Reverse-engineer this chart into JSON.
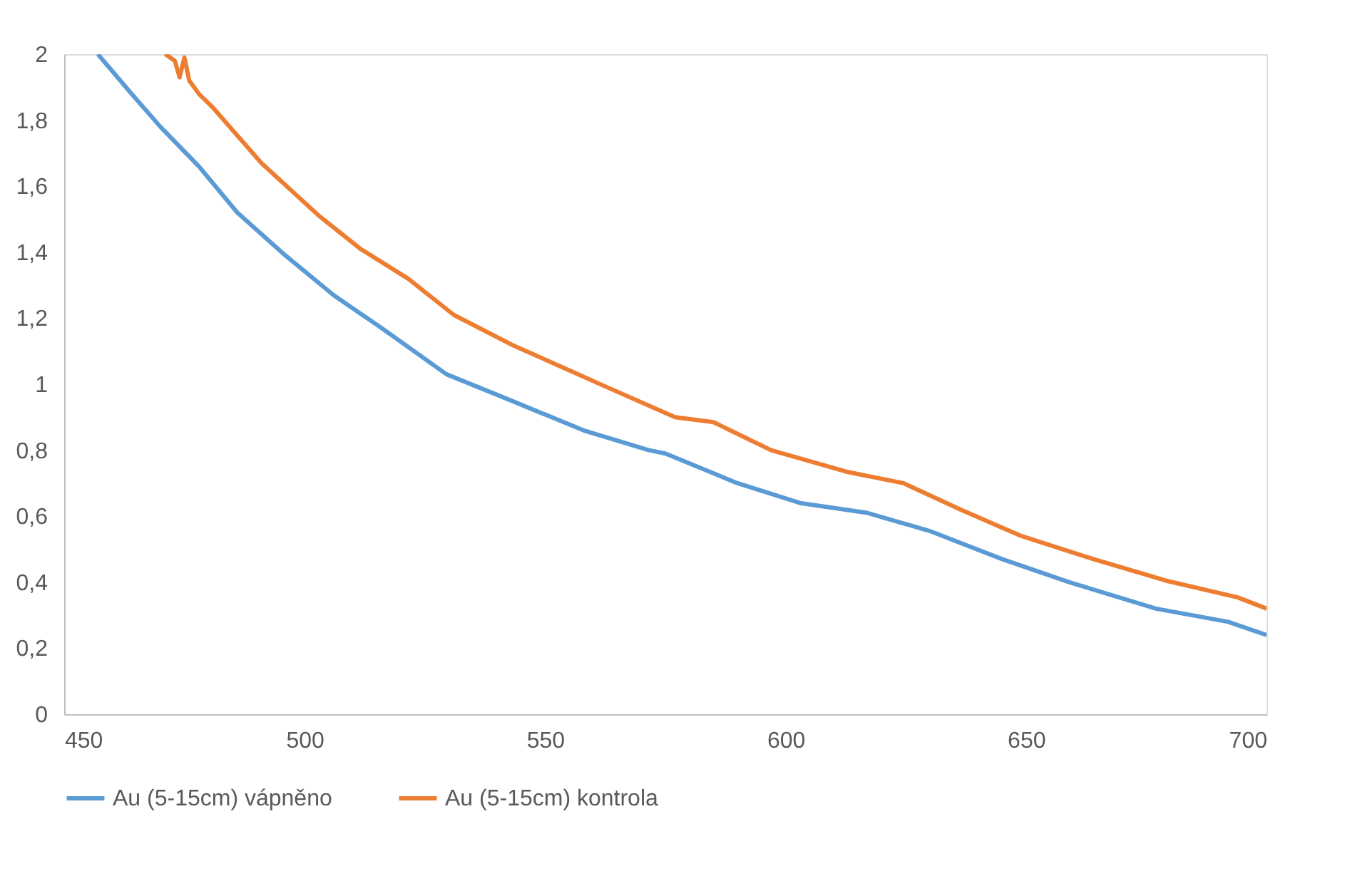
{
  "chart_data": {
    "type": "line",
    "xlim": [
      450,
      700
    ],
    "xticks": [
      450,
      500,
      550,
      600,
      650,
      700
    ],
    "ylim": [
      0,
      2
    ],
    "yticks": [
      0,
      {
        "value": 0.2,
        "label": "0,2"
      },
      {
        "value": 0.4,
        "label": "0,4"
      },
      {
        "value": 0.6,
        "label": "0,6"
      },
      {
        "value": 0.8,
        "label": "0,8"
      },
      1,
      {
        "value": 1.2,
        "label": "1,2"
      },
      {
        "value": 1.4,
        "label": "1,4"
      },
      {
        "value": 1.6,
        "label": "1,6"
      },
      {
        "value": 1.8,
        "label": "1,8"
      },
      2
    ],
    "grid": false,
    "legend": "bottom",
    "marker": "none",
    "line_style": "solid",
    "series": [
      {
        "name": "Au (5-15cm) vápněno",
        "color": "#5b9bd5",
        "x": [
          457,
          464,
          470,
          478,
          486,
          496,
          506,
          516,
          529.5,
          543,
          558,
          571.6,
          575,
          590,
          603,
          617,
          630,
          645,
          659,
          677,
          692,
          700
        ],
        "values": [
          2.0,
          1.88,
          1.78,
          1.66,
          1.52,
          1.39,
          1.27,
          1.17,
          1.03,
          0.95,
          0.86,
          0.8,
          0.79,
          0.7,
          0.64,
          0.61,
          0.555,
          0.47,
          0.4,
          0.32,
          0.28,
          0.24
        ]
      },
      {
        "name": "Au (5-15cm) kontrola",
        "color": "#ed7d31",
        "x": [
          471,
          473,
          474,
          475,
          476,
          478,
          480.8,
          491,
          503,
          511.6,
          521.5,
          531,
          543,
          563,
          577,
          585,
          597,
          612.6,
          624.5,
          636.4,
          649,
          664,
          679,
          694,
          700
        ],
        "values": [
          2.0,
          1.98,
          1.93,
          1.99,
          1.92,
          1.88,
          1.84,
          1.67,
          1.51,
          1.41,
          1.32,
          1.21,
          1.12,
          0.99,
          0.9,
          0.885,
          0.8,
          0.735,
          0.7,
          0.62,
          0.54,
          0.47,
          0.405,
          0.354,
          0.32
        ]
      }
    ]
  }
}
